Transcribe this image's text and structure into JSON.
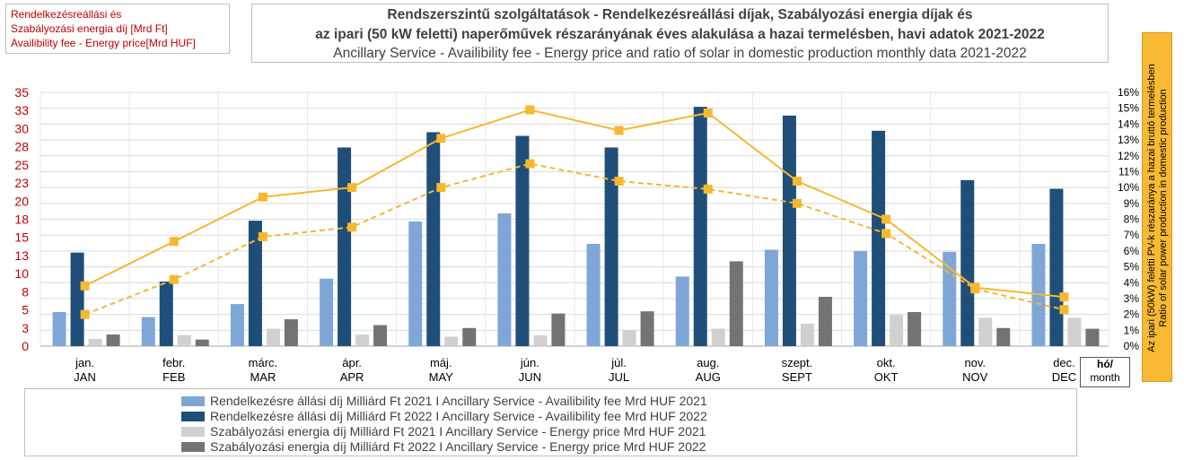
{
  "title": {
    "line1": "Rendszerszintű szolgáltatások - Rendelkezésreállási díjak, Szabályozási energia díjak és",
    "line2": "az ipari (50 kW feletti) naperőművek részarányának éves alakulása a hazai termelésben, havi adatok 2021-2022",
    "line3": "Ancillary Service - Availibility fee - Energy price and ratio of solar in domestic production monthly data 2021-2022"
  },
  "y_axis_title": {
    "line1": "Rendelkezésreállási és",
    "line2": "Szabályozási energia díj  [Mrd Ft]",
    "line3": "Availibility fee - Energy price[Mrd HUF]"
  },
  "y2_axis_title": {
    "line1": "Az ipari (50kW) feletti PV-k részaránya a hazai bruttó termelésben",
    "line2": "Ratio of solar power production in domestic production"
  },
  "x_unit": {
    "line1": "hó/",
    "line2": "month"
  },
  "colors": {
    "s2021_avail": "#7ea7d8",
    "s2022_avail": "#1f4e79",
    "s2021_energy": "#d0d0d0",
    "s2022_energy": "#737373",
    "solar": "#f5b82e",
    "left_axis_text": "#c00000"
  },
  "legend": [
    "Rendelkezésre állási díj Milliárd Ft 2021 I Ancillary Service - Availibility fee  Mrd HUF 2021",
    "Rendelkezésre állási díj Milliárd Ft 2022 I Ancillary Service - Availibility fee  Mrd HUF 2022",
    "Szabályozási energia díj Milliárd Ft  2021 I Ancillary Service -  Energy price Mrd HUF 2021",
    "Szabályozási energia díj Milliárd Ft  2022 I Ancillary Service -  Energy price Mrd HUF 2022"
  ],
  "chart_data": {
    "type": "bar",
    "categories_hu": [
      "jan.",
      "febr.",
      "márc.",
      "ápr.",
      "máj.",
      "jún.",
      "júl.",
      "aug.",
      "szept.",
      "okt.",
      "nov.",
      "dec."
    ],
    "categories_en": [
      "JAN",
      "FEB",
      "MAR",
      "APR",
      "MAY",
      "JUN",
      "JUL",
      "AUG",
      "SEPT",
      "OKT",
      "NOV",
      "DEC"
    ],
    "series": [
      {
        "name": "Availibility fee 2021",
        "axis": "left",
        "kind": "bar",
        "values": [
          4.7,
          4.0,
          5.8,
          9.3,
          17.2,
          18.3,
          14.1,
          9.6,
          13.3,
          13.1,
          13.0,
          14.1
        ]
      },
      {
        "name": "Availibility fee 2022",
        "axis": "left",
        "kind": "bar",
        "values": [
          12.9,
          8.9,
          17.3,
          27.4,
          29.5,
          29.0,
          27.4,
          33.0,
          31.8,
          29.7,
          22.9,
          21.7
        ]
      },
      {
        "name": "Energy price 2021",
        "axis": "left",
        "kind": "bar",
        "values": [
          1.0,
          1.5,
          2.4,
          1.6,
          1.3,
          1.5,
          2.2,
          2.4,
          3.1,
          4.3,
          3.9,
          3.9
        ]
      },
      {
        "name": "Energy price 2022",
        "axis": "left",
        "kind": "bar",
        "values": [
          1.6,
          0.9,
          3.7,
          2.9,
          2.5,
          4.5,
          4.8,
          11.7,
          6.8,
          4.7,
          2.5,
          2.4
        ]
      },
      {
        "name": "Solar ratio 2022",
        "axis": "right",
        "kind": "line",
        "style": "solid",
        "values": [
          3.8,
          6.6,
          9.4,
          10.0,
          13.1,
          14.9,
          13.6,
          14.7,
          10.4,
          8.0,
          3.7,
          3.1
        ]
      },
      {
        "name": "Solar ratio 2021",
        "axis": "right",
        "kind": "line",
        "style": "dashed",
        "values": [
          2.0,
          4.2,
          6.9,
          7.5,
          10.0,
          11.5,
          10.4,
          9.9,
          9.0,
          7.1,
          3.6,
          2.3
        ]
      }
    ],
    "y_left": {
      "ylim": [
        0,
        35
      ],
      "ticks": [
        0,
        2.5,
        5,
        7.5,
        10,
        12.5,
        15,
        17.5,
        20,
        22.5,
        25,
        27.5,
        30,
        32.5,
        35
      ],
      "tick_labels": [
        "0",
        "3",
        "5",
        "8",
        "10",
        "13",
        "15",
        "18",
        "20",
        "23",
        "25",
        "28",
        "30",
        "33",
        "35"
      ]
    },
    "y_right": {
      "ylim": [
        0,
        16
      ],
      "tick_labels": [
        "0%",
        "1%",
        "2%",
        "3%",
        "4%",
        "5%",
        "6%",
        "7%",
        "8%",
        "9%",
        "10%",
        "11%",
        "12%",
        "13%",
        "14%",
        "15%",
        "16%"
      ]
    },
    "grid": true,
    "legend_position": "bottom"
  }
}
